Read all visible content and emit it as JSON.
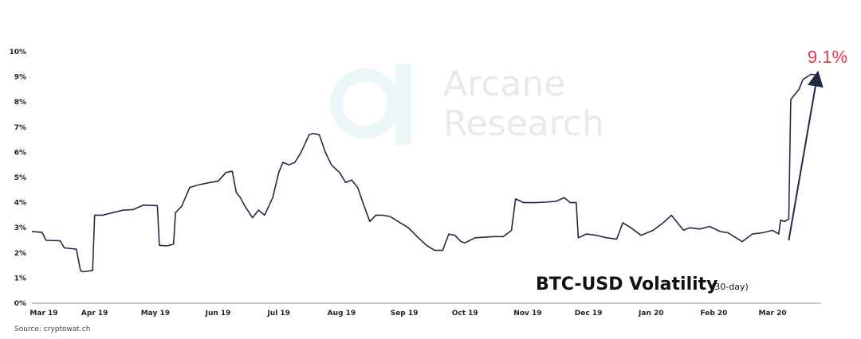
{
  "watermark": {
    "line1": "Arcane",
    "line2": "Research"
  },
  "source": "Source: cryptowat.ch",
  "annotation": {
    "text": "9.1%",
    "color": "#e8384f"
  },
  "chart_data": {
    "type": "line",
    "title": "BTC-USD Volatility",
    "subtitle": "(30-day)",
    "xlabel": "",
    "ylabel": "",
    "ylim": [
      0,
      10
    ],
    "yticks": [
      "0%",
      "1%",
      "2%",
      "3%",
      "4%",
      "5%",
      "6%",
      "7%",
      "8%",
      "9%",
      "10%"
    ],
    "xticks": [
      "Mar 19",
      "Apr 19",
      "May 19",
      "Jun 19",
      "Jul 19",
      "Aug 19",
      "Sep 19",
      "Oct 19",
      "Nov 19",
      "Dec 19",
      "Jan 20",
      "Feb 20",
      "Mar 20"
    ],
    "grid": false,
    "line_color": "#1f2a44",
    "series": [
      {
        "x": [
          "2019-03-01",
          "2019-03-06",
          "2019-03-08",
          "2019-03-15",
          "2019-03-17",
          "2019-03-23",
          "2019-03-25",
          "2019-03-26",
          "2019-03-31",
          "2019-04-01",
          "2019-04-05",
          "2019-04-10",
          "2019-04-15",
          "2019-04-20",
          "2019-04-25",
          "2019-05-02",
          "2019-05-03",
          "2019-05-07",
          "2019-05-10",
          "2019-05-11",
          "2019-05-14",
          "2019-05-18",
          "2019-05-22",
          "2019-05-28",
          "2019-06-01",
          "2019-06-05",
          "2019-06-08",
          "2019-06-10",
          "2019-06-12",
          "2019-06-14",
          "2019-06-18",
          "2019-06-21",
          "2019-06-24",
          "2019-06-28",
          "2019-07-01",
          "2019-07-03",
          "2019-07-06",
          "2019-07-09",
          "2019-07-12",
          "2019-07-16",
          "2019-07-18",
          "2019-07-21",
          "2019-07-24",
          "2019-07-27",
          "2019-07-31",
          "2019-08-03",
          "2019-08-06",
          "2019-08-09",
          "2019-08-12",
          "2019-08-15",
          "2019-08-18",
          "2019-08-21",
          "2019-08-25",
          "2019-08-30",
          "2019-09-03",
          "2019-09-08",
          "2019-09-12",
          "2019-09-16",
          "2019-09-20",
          "2019-09-23",
          "2019-09-26",
          "2019-09-29",
          "2019-10-01",
          "2019-10-06",
          "2019-10-10",
          "2019-10-15",
          "2019-10-20",
          "2019-10-24",
          "2019-10-26",
          "2019-10-30",
          "2019-11-05",
          "2019-11-10",
          "2019-11-15",
          "2019-11-19",
          "2019-11-22",
          "2019-11-25",
          "2019-11-26",
          "2019-11-30",
          "2019-12-05",
          "2019-12-10",
          "2019-12-15",
          "2019-12-18",
          "2019-12-22",
          "2019-12-27",
          "2020-01-02",
          "2020-01-07",
          "2020-01-11",
          "2020-01-14",
          "2020-01-17",
          "2020-01-20",
          "2020-01-25",
          "2020-01-30",
          "2020-02-04",
          "2020-02-08",
          "2020-02-11",
          "2020-02-15",
          "2020-02-20",
          "2020-02-25",
          "2020-03-01",
          "2020-03-04",
          "2020-03-05",
          "2020-03-07",
          "2020-03-09",
          "2020-03-10",
          "2020-03-12",
          "2020-03-14",
          "2020-03-16",
          "2020-03-20",
          "2020-03-22"
        ],
        "y": [
          2.85,
          2.82,
          2.5,
          2.48,
          2.2,
          2.15,
          1.3,
          1.25,
          1.3,
          3.5,
          3.5,
          3.6,
          3.7,
          3.72,
          3.9,
          3.88,
          2.3,
          2.28,
          2.35,
          3.6,
          3.85,
          4.6,
          4.7,
          4.8,
          4.85,
          5.2,
          5.25,
          4.4,
          4.2,
          3.9,
          3.4,
          3.7,
          3.5,
          4.2,
          5.2,
          5.6,
          5.5,
          5.6,
          6.0,
          6.7,
          6.75,
          6.7,
          6.0,
          5.5,
          5.2,
          4.8,
          4.9,
          4.6,
          3.9,
          3.25,
          3.5,
          3.5,
          3.45,
          3.2,
          3.0,
          2.6,
          2.3,
          2.1,
          2.1,
          2.75,
          2.7,
          2.45,
          2.4,
          2.6,
          2.62,
          2.65,
          2.65,
          2.9,
          4.15,
          4.0,
          4.0,
          4.02,
          4.05,
          4.2,
          4.0,
          4.0,
          2.6,
          2.75,
          2.7,
          2.6,
          2.55,
          3.2,
          3.0,
          2.7,
          2.9,
          3.2,
          3.5,
          3.2,
          2.9,
          3.0,
          2.95,
          3.05,
          2.85,
          2.8,
          2.65,
          2.45,
          2.75,
          2.8,
          2.9,
          2.75,
          3.3,
          3.25,
          3.35,
          8.1,
          8.3,
          8.5,
          8.9,
          9.1,
          9.08
        ]
      }
    ],
    "trend_arrow": {
      "from": [
        "2020-03-09",
        2.5
      ],
      "to": [
        "2020-03-23",
        9.0
      ]
    }
  }
}
